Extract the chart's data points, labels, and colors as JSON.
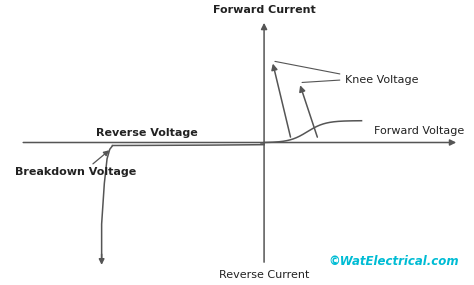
{
  "background_color": "#ffffff",
  "curve_color": "#555555",
  "text_color": "#222222",
  "watermark_color": "#00bcd4",
  "forward_current_label": "Forward Current",
  "reverse_current_label": "Reverse Current",
  "forward_voltage_label": "Forward Voltage",
  "reverse_voltage_label": "Reverse Voltage",
  "breakdown_voltage_label": "Breakdown Voltage",
  "knee_voltage_label": "Knee Voltage",
  "watermark": "©WatElectrical.com",
  "label_fontsize": 8,
  "watermark_fontsize": 8.5,
  "lw": 1.1
}
